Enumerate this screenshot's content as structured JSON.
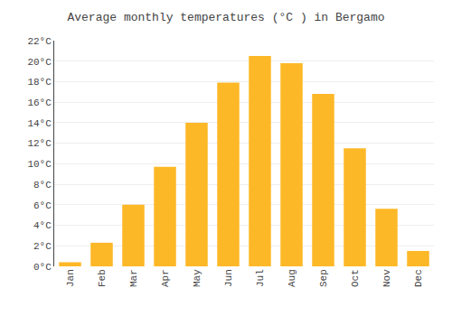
{
  "chart_data": {
    "type": "bar",
    "title": "Average monthly temperatures (°C ) in Bergamo",
    "categories": [
      "Jan",
      "Feb",
      "Mar",
      "Apr",
      "May",
      "Jun",
      "Jul",
      "Aug",
      "Sep",
      "Oct",
      "Nov",
      "Dec"
    ],
    "values": [
      0.4,
      2.3,
      6.0,
      9.7,
      14.0,
      17.9,
      20.5,
      19.8,
      16.8,
      11.5,
      5.6,
      1.5
    ],
    "color": "#FDB827",
    "ylim": [
      0,
      22
    ],
    "yticks": [
      {
        "value": 0,
        "label": "0°C"
      },
      {
        "value": 2,
        "label": "2°C"
      },
      {
        "value": 4,
        "label": "4°C"
      },
      {
        "value": 6,
        "label": "6°C"
      },
      {
        "value": 8,
        "label": "8°C"
      },
      {
        "value": 10,
        "label": "10°C"
      },
      {
        "value": 12,
        "label": "12°C"
      },
      {
        "value": 14,
        "label": "14°C"
      },
      {
        "value": 16,
        "label": "16°C"
      },
      {
        "value": 18,
        "label": "18°C"
      },
      {
        "value": 20,
        "label": "20°C"
      },
      {
        "value": 22,
        "label": "22°C"
      }
    ],
    "grid": true
  }
}
